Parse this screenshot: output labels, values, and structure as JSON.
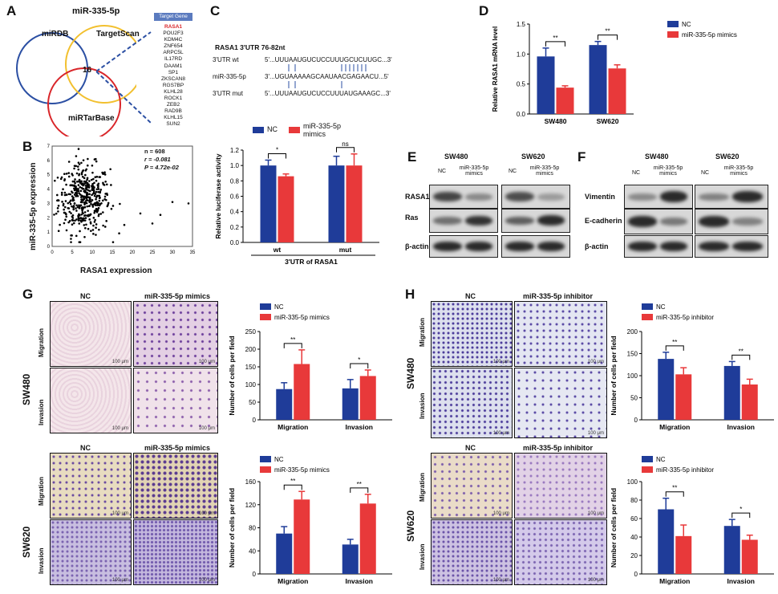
{
  "panel_letters": [
    "A",
    "B",
    "C",
    "D",
    "E",
    "F",
    "G",
    "H"
  ],
  "colors": {
    "nc": "#1f3c99",
    "treat": "#e8393a"
  },
  "A": {
    "title": "miR-335-5p",
    "circles": [
      "miRDB",
      "TargetScan",
      "miRTarBase"
    ],
    "center": "16",
    "target_header": "Target Gene",
    "genes": [
      "RASA1",
      "POU2F3",
      "KDM4C",
      "ZNF654",
      "ARPC5L",
      "IL17RD",
      "DAAM1",
      "SP1",
      "ZKSCAN8",
      "RGS7BP",
      "KLHL28",
      "ROCK1",
      "ZEB2",
      "RAD9B",
      "KLHL15",
      "SUN2"
    ]
  },
  "B": {
    "stats": [
      "n = 608",
      "r = -0.081",
      "P = 4.72e-02"
    ],
    "xlabel": "RASA1 expression",
    "ylabel": "miR-335-5p expression",
    "xticks": [
      "0",
      "5",
      "10",
      "15",
      "20",
      "25",
      "30",
      "35"
    ],
    "yticks": [
      "0",
      "1",
      "2",
      "3",
      "4",
      "5",
      "6",
      "7"
    ]
  },
  "C": {
    "title": "RASA1 3'UTR 76-82nt",
    "rows": [
      {
        "label": "3'UTR  wt",
        "seq": "5'...UUUAAUGUCUCCUUUGCUCUUGC...3'"
      },
      {
        "label": "miR-335-5p",
        "seq": "3'...UGUAAAAAGCAAUAACGAGAACU...5'"
      },
      {
        "label": "3'UTR mut",
        "seq": "5'...UUUAAUGUCUCCUUUAUGAAAGC...3'"
      }
    ],
    "legend": [
      "NC",
      "miR-335-5p mimics"
    ]
  },
  "E": {
    "cells": [
      "SW480",
      "SW620"
    ],
    "cols": [
      "NC",
      "miR-335-5p mimics",
      "NC",
      "miR-335-5p mimics"
    ],
    "rows": [
      "RASA1",
      "Ras",
      "β-actin"
    ]
  },
  "F": {
    "cells": [
      "SW480",
      "SW620"
    ],
    "cols": [
      "NC",
      "miR-335-5p mimics",
      "NC",
      "miR-335-5p mimics"
    ],
    "rows": [
      "Vimentin",
      "E-cadherin",
      "β-actin"
    ]
  },
  "G": {
    "cols": [
      "NC",
      "miR-335-5p mimics"
    ],
    "cells": [
      "SW480",
      "SW620"
    ],
    "rows": [
      "Migration",
      "Invasion"
    ],
    "scale": "100 μm"
  },
  "H": {
    "cols": [
      "NC",
      "miR-335-5p inhibitor"
    ],
    "cells": [
      "SW480",
      "SW620"
    ],
    "rows": [
      "Migration",
      "Invasion"
    ],
    "scale": "100 μm"
  },
  "chart_data": [
    {
      "id": "C",
      "type": "bar",
      "categories": [
        "wt",
        "mut"
      ],
      "group_label": "3'UTR of RASA1",
      "series": [
        {
          "name": "NC",
          "values": [
            1.0,
            1.0
          ],
          "errors": [
            0.07,
            0.12
          ]
        },
        {
          "name": "miR-335-5p mimics",
          "values": [
            0.86,
            1.0
          ],
          "errors": [
            0.03,
            0.15
          ]
        }
      ],
      "ylabel": "Relative luciferase activity",
      "ylim": [
        0,
        1.2
      ],
      "yticks": [
        "0.0",
        "0.2",
        "0.4",
        "0.6",
        "0.8",
        "1.0",
        "1.2"
      ],
      "sig": [
        "*",
        "ns"
      ]
    },
    {
      "id": "D",
      "type": "bar",
      "categories": [
        "SW480",
        "SW620"
      ],
      "series": [
        {
          "name": "NC",
          "values": [
            0.96,
            1.15
          ],
          "errors": [
            0.14,
            0.06
          ]
        },
        {
          "name": "miR-335-5p mimics",
          "values": [
            0.44,
            0.76
          ],
          "errors": [
            0.03,
            0.06
          ]
        }
      ],
      "ylabel": "Relative RASA1 mRNA level",
      "ylim": [
        0,
        1.5
      ],
      "yticks": [
        "0.0",
        "0.5",
        "1.0",
        "1.5"
      ],
      "sig": [
        "**",
        "**"
      ]
    },
    {
      "id": "G1",
      "type": "bar",
      "categories": [
        "Migration",
        "Invasion"
      ],
      "series": [
        {
          "name": "NC",
          "values": [
            87,
            89
          ],
          "errors": [
            18,
            25
          ]
        },
        {
          "name": "miR-335-5p mimics",
          "values": [
            158,
            124
          ],
          "errors": [
            40,
            17
          ]
        }
      ],
      "ylabel": "Number of cells per field",
      "ylim": [
        0,
        250
      ],
      "yticks": [
        "0",
        "50",
        "100",
        "150",
        "200",
        "250"
      ],
      "sig": [
        "**",
        "*"
      ]
    },
    {
      "id": "G2",
      "type": "bar",
      "categories": [
        "Migration",
        "Invasion"
      ],
      "series": [
        {
          "name": "NC",
          "values": [
            70,
            51
          ],
          "errors": [
            12,
            9
          ]
        },
        {
          "name": "miR-335-5p mimics",
          "values": [
            129,
            122
          ],
          "errors": [
            14,
            16
          ]
        }
      ],
      "ylabel": "Number of cells per field",
      "ylim": [
        0,
        160
      ],
      "yticks": [
        "0",
        "40",
        "80",
        "120",
        "160"
      ],
      "sig": [
        "**",
        "**"
      ]
    },
    {
      "id": "H1",
      "type": "bar",
      "categories": [
        "Migration",
        "Invasion"
      ],
      "series": [
        {
          "name": "NC",
          "values": [
            138,
            122
          ],
          "errors": [
            15,
            10
          ]
        },
        {
          "name": "miR-335-5p inhibitor",
          "values": [
            103,
            80
          ],
          "errors": [
            15,
            12
          ]
        }
      ],
      "ylabel": "Number of cells per field",
      "ylim": [
        0,
        200
      ],
      "yticks": [
        "0",
        "50",
        "100",
        "150",
        "200"
      ],
      "sig": [
        "**",
        "**"
      ]
    },
    {
      "id": "H2",
      "type": "bar",
      "categories": [
        "Migration",
        "Invasion"
      ],
      "series": [
        {
          "name": "NC",
          "values": [
            70,
            52
          ],
          "errors": [
            12,
            7
          ]
        },
        {
          "name": "miR-335-5p inhibitor",
          "values": [
            41,
            37
          ],
          "errors": [
            12,
            5
          ]
        }
      ],
      "ylabel": "Number of cells per field",
      "ylim": [
        0,
        100
      ],
      "yticks": [
        "0",
        "20",
        "40",
        "60",
        "80",
        "100"
      ],
      "sig": [
        "**",
        "*"
      ]
    }
  ]
}
